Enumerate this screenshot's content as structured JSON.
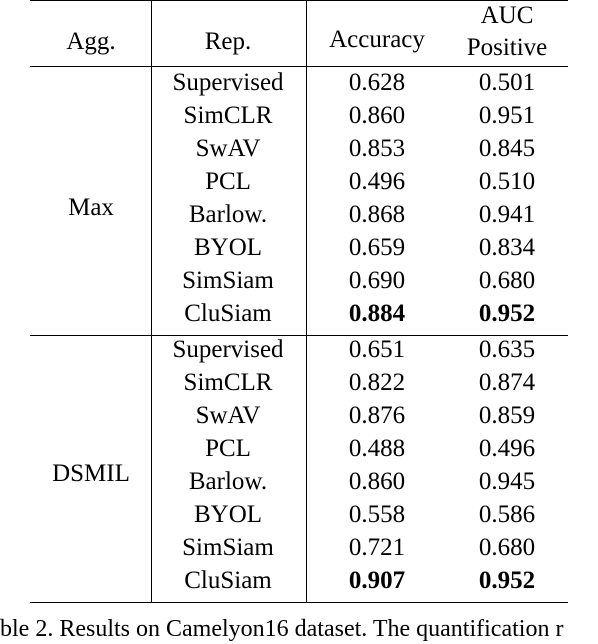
{
  "table": {
    "headers": {
      "agg": "Agg.",
      "rep": "Rep.",
      "accuracy": "Accuracy",
      "auc_line1": "AUC",
      "auc_line2": "Positive"
    },
    "groups": [
      {
        "agg": "Max",
        "rows": [
          {
            "rep": "Supervised",
            "accuracy": "0.628",
            "auc": "0.501",
            "bold": false
          },
          {
            "rep": "SimCLR",
            "accuracy": "0.860",
            "auc": "0.951",
            "bold": false
          },
          {
            "rep": "SwAV",
            "accuracy": "0.853",
            "auc": "0.845",
            "bold": false
          },
          {
            "rep": "PCL",
            "accuracy": "0.496",
            "auc": "0.510",
            "bold": false
          },
          {
            "rep": "Barlow.",
            "accuracy": "0.868",
            "auc": "0.941",
            "bold": false
          },
          {
            "rep": "BYOL",
            "accuracy": "0.659",
            "auc": "0.834",
            "bold": false
          },
          {
            "rep": "SimSiam",
            "accuracy": "0.690",
            "auc": "0.680",
            "bold": false
          },
          {
            "rep": "CluSiam",
            "accuracy": "0.884",
            "auc": "0.952",
            "bold": true
          }
        ]
      },
      {
        "agg": "DSMIL",
        "rows": [
          {
            "rep": "Supervised",
            "accuracy": "0.651",
            "auc": "0.635",
            "bold": false
          },
          {
            "rep": "SimCLR",
            "accuracy": "0.822",
            "auc": "0.874",
            "bold": false
          },
          {
            "rep": "SwAV",
            "accuracy": "0.876",
            "auc": "0.859",
            "bold": false
          },
          {
            "rep": "PCL",
            "accuracy": "0.488",
            "auc": "0.496",
            "bold": false
          },
          {
            "rep": "Barlow.",
            "accuracy": "0.860",
            "auc": "0.945",
            "bold": false
          },
          {
            "rep": "BYOL",
            "accuracy": "0.558",
            "auc": "0.586",
            "bold": false
          },
          {
            "rep": "SimSiam",
            "accuracy": "0.721",
            "auc": "0.680",
            "bold": false
          },
          {
            "rep": "CluSiam",
            "accuracy": "0.907",
            "auc": "0.952",
            "bold": true
          }
        ]
      }
    ]
  },
  "caption": "ble 2. Results on Camelyon16 dataset. The quantification r"
}
